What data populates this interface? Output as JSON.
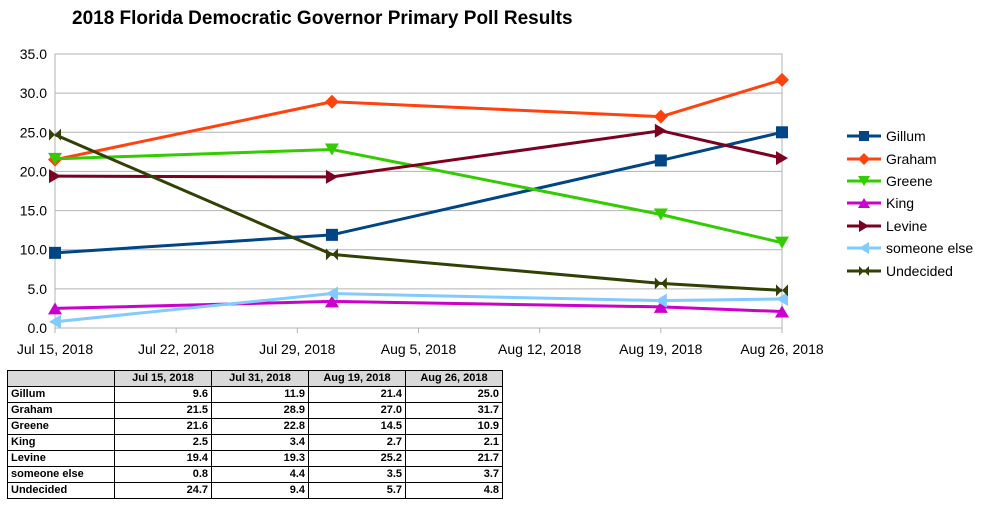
{
  "chart_data": {
    "type": "line",
    "title": "2018 Florida Democratic Governor Primary Poll Results",
    "ylim": [
      0,
      35
    ],
    "yticks": [
      "0.0",
      "5.0",
      "10.0",
      "15.0",
      "20.0",
      "25.0",
      "30.0",
      "35.0"
    ],
    "xlim": [
      "2018-07-15",
      "2018-08-26"
    ],
    "xticks": [
      "Jul 15, 2018",
      "Jul 22, 2018",
      "Jul 29, 2018",
      "Aug 5, 2018",
      "Aug 12, 2018",
      "Aug 19, 2018",
      "Aug 26, 2018"
    ],
    "legend_position": "right",
    "grid": "horizontal",
    "x_dates": [
      "2018-07-15",
      "2018-07-31",
      "2018-08-19",
      "2018-08-26"
    ],
    "series": [
      {
        "name": "Gillum",
        "color": "#004586",
        "marker": "square",
        "values": [
          9.6,
          11.9,
          21.4,
          25.0
        ]
      },
      {
        "name": "Graham",
        "color": "#ff420e",
        "marker": "diamond",
        "values": [
          21.5,
          28.9,
          27.0,
          31.7
        ]
      },
      {
        "name": "Greene",
        "color": "#33cc00",
        "marker": "triangle-down",
        "values": [
          21.6,
          22.8,
          14.5,
          10.9
        ]
      },
      {
        "name": "King",
        "color": "#cc00cc",
        "marker": "triangle-up",
        "values": [
          2.5,
          3.4,
          2.7,
          2.1
        ]
      },
      {
        "name": "Levine",
        "color": "#7e0021",
        "marker": "triangle-right",
        "values": [
          19.4,
          19.3,
          25.2,
          21.7
        ]
      },
      {
        "name": "someone else",
        "color": "#83caff",
        "marker": "triangle-left",
        "values": [
          0.8,
          4.4,
          3.5,
          3.7
        ]
      },
      {
        "name": "Undecided",
        "color": "#314004",
        "marker": "bowtie",
        "values": [
          24.7,
          9.4,
          5.7,
          4.8
        ]
      }
    ]
  },
  "table": {
    "headers": [
      "",
      "Jul 15, 2018",
      "Jul 31, 2018",
      "Aug 19, 2018",
      "Aug 26, 2018"
    ],
    "rows": [
      {
        "name": "Gillum",
        "values": [
          "9.6",
          "11.9",
          "21.4",
          "25.0"
        ]
      },
      {
        "name": "Graham",
        "values": [
          "21.5",
          "28.9",
          "27.0",
          "31.7"
        ]
      },
      {
        "name": "Greene",
        "values": [
          "21.6",
          "22.8",
          "14.5",
          "10.9"
        ]
      },
      {
        "name": "King",
        "values": [
          "2.5",
          "3.4",
          "2.7",
          "2.1"
        ]
      },
      {
        "name": "Levine",
        "values": [
          "19.4",
          "19.3",
          "25.2",
          "21.7"
        ]
      },
      {
        "name": "someone else",
        "values": [
          "0.8",
          "4.4",
          "3.5",
          "3.7"
        ]
      },
      {
        "name": "Undecided",
        "values": [
          "24.7",
          "9.4",
          "5.7",
          "4.8"
        ]
      }
    ]
  }
}
